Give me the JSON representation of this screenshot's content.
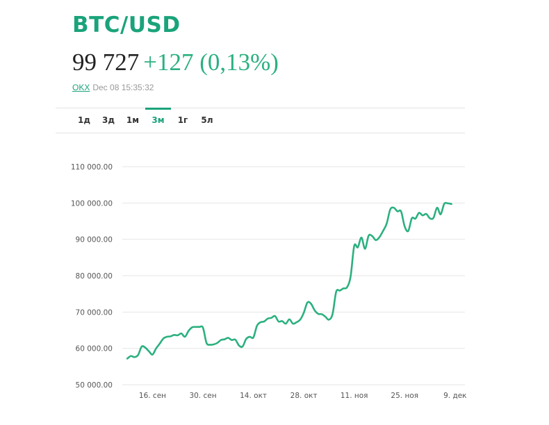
{
  "header": {
    "ticker": "BTC/USD",
    "price": "99 727",
    "change": "+127 (0,13%)",
    "source": "OKX",
    "timestamp": "Dec 08 15:35:32"
  },
  "tabs": [
    {
      "label": "1д",
      "active": false
    },
    {
      "label": "3д",
      "active": false
    },
    {
      "label": "1м",
      "active": false
    },
    {
      "label": "3м",
      "active": true
    },
    {
      "label": "1г",
      "active": false
    },
    {
      "label": "5л",
      "active": false
    }
  ],
  "colors": {
    "accent": "#1aa37a",
    "line": "#2bb07f",
    "grid": "#e6e6e6"
  },
  "chart_data": {
    "type": "line",
    "title": "",
    "xlabel": "",
    "ylabel": "",
    "ylim": [
      50000,
      110000
    ],
    "xlim": [
      "2024-09-08",
      "2024-12-10"
    ],
    "yticks": [
      110000,
      100000,
      90000,
      80000,
      70000,
      60000,
      50000
    ],
    "ytick_labels": [
      "110 000.00",
      "100 000.00",
      "90 000.00",
      "80 000.00",
      "70 000.00",
      "60 000.00",
      "50 000.00"
    ],
    "xticks": [
      "2024-09-16",
      "2024-09-30",
      "2024-10-14",
      "2024-10-28",
      "2024-11-11",
      "2024-11-25",
      "2024-12-09"
    ],
    "xtick_labels": [
      "16. сен",
      "30. сен",
      "14. окт",
      "28. окт",
      "11. ноя",
      "25. ноя",
      "9. дек"
    ],
    "grid": true,
    "legend": "none",
    "series": [
      {
        "x": [
          "2024-09-09",
          "2024-09-10",
          "2024-09-11",
          "2024-09-12",
          "2024-09-13",
          "2024-09-14",
          "2024-09-15",
          "2024-09-16",
          "2024-09-17",
          "2024-09-18",
          "2024-09-19",
          "2024-09-20",
          "2024-09-21",
          "2024-09-22",
          "2024-09-23",
          "2024-09-24",
          "2024-09-25",
          "2024-09-26",
          "2024-09-27",
          "2024-09-28",
          "2024-09-29",
          "2024-09-30",
          "2024-10-01",
          "2024-10-02",
          "2024-10-03",
          "2024-10-04",
          "2024-10-05",
          "2024-10-06",
          "2024-10-07",
          "2024-10-08",
          "2024-10-09",
          "2024-10-10",
          "2024-10-11",
          "2024-10-12",
          "2024-10-13",
          "2024-10-14",
          "2024-10-15",
          "2024-10-16",
          "2024-10-17",
          "2024-10-18",
          "2024-10-19",
          "2024-10-20",
          "2024-10-21",
          "2024-10-22",
          "2024-10-23",
          "2024-10-24",
          "2024-10-25",
          "2024-10-26",
          "2024-10-27",
          "2024-10-28",
          "2024-10-29",
          "2024-10-30",
          "2024-10-31",
          "2024-11-01",
          "2024-11-02",
          "2024-11-03",
          "2024-11-04",
          "2024-11-05",
          "2024-11-06",
          "2024-11-07",
          "2024-11-08",
          "2024-11-09",
          "2024-11-10",
          "2024-11-11",
          "2024-11-12",
          "2024-11-13",
          "2024-11-14",
          "2024-11-15",
          "2024-11-16",
          "2024-11-17",
          "2024-11-18",
          "2024-11-19",
          "2024-11-20",
          "2024-11-21",
          "2024-11-22",
          "2024-11-23",
          "2024-11-24",
          "2024-11-25",
          "2024-11-26",
          "2024-11-27",
          "2024-11-28",
          "2024-11-29",
          "2024-11-30",
          "2024-12-01",
          "2024-12-02",
          "2024-12-03",
          "2024-12-04",
          "2024-12-05",
          "2024-12-06",
          "2024-12-07",
          "2024-12-08"
        ],
        "values": [
          57200,
          57900,
          57600,
          58200,
          60500,
          60200,
          59200,
          58300,
          60000,
          61300,
          62700,
          63200,
          63300,
          63700,
          63600,
          64100,
          63200,
          64800,
          65800,
          65900,
          65900,
          65700,
          61500,
          61000,
          61100,
          61500,
          62300,
          62500,
          62900,
          62300,
          62400,
          60800,
          60500,
          62600,
          63200,
          63000,
          66200,
          67200,
          67400,
          68200,
          68400,
          68900,
          67400,
          67500,
          66800,
          68000,
          66800,
          67200,
          67900,
          69800,
          72600,
          72300,
          70500,
          69500,
          69400,
          68700,
          67900,
          69500,
          75600,
          75900,
          76500,
          76800,
          79800,
          88200,
          87800,
          90500,
          87400,
          91000,
          90900,
          89800,
          90600,
          92300,
          94300,
          98200,
          98700,
          97700,
          97700,
          93600,
          92300,
          95800,
          95700,
          97300,
          96600,
          97000,
          95800,
          95900,
          98700,
          96900,
          99800,
          99900,
          99727
        ]
      }
    ]
  }
}
